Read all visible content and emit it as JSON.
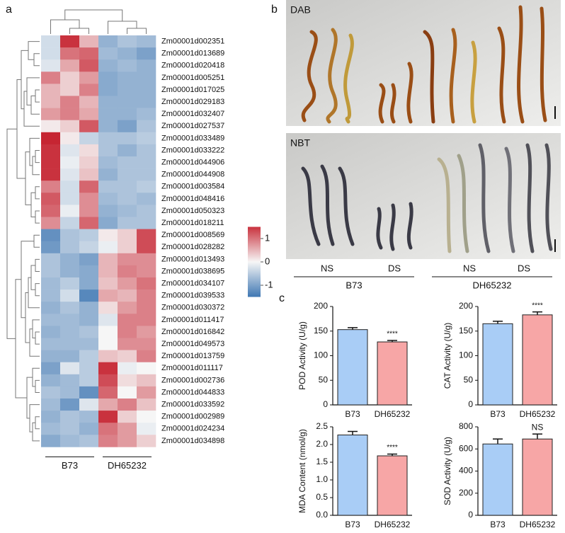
{
  "panel_labels": [
    "a",
    "b",
    "c"
  ],
  "photos": {
    "stains": [
      "DAB",
      "NBT"
    ],
    "treatments": [
      "NS",
      "DS",
      "NS",
      "DS"
    ],
    "genotypes": [
      "B73",
      "DH65232"
    ]
  },
  "chart_data": [
    {
      "type": "heatmap",
      "rows": [
        "Zm00001d002351",
        "Zm00001d013689",
        "Zm00001d020418",
        "Zm00001d005251",
        "Zm00001d017025",
        "Zm00001d029183",
        "Zm00001d032407",
        "Zm00001d027537",
        "Zm00001d033489",
        "Zm00001d033222",
        "Zm00001d044906",
        "Zm00001d044908",
        "Zm00001d003584",
        "Zm00001d048416",
        "Zm00001d050323",
        "Zm00001d018211",
        "Zm00001d008569",
        "Zm00001d028282",
        "Zm00001d013493",
        "Zm00001d038695",
        "Zm00001d034107",
        "Zm00001d039533",
        "Zm00001d030372",
        "Zm00001d011417",
        "Zm00001d016842",
        "Zm00001d049573",
        "Zm00001d013759",
        "Zm00001d011117",
        "Zm00001d002736",
        "Zm00001d044833",
        "Zm00001d033592",
        "Zm00001d002989",
        "Zm00001d024234",
        "Zm00001d034898"
      ],
      "column_groups": [
        "B73",
        "DH65232"
      ],
      "values": [
        [
          -0.3,
          1.5,
          0.5,
          -0.8,
          -0.6,
          -0.7
        ],
        [
          -0.3,
          1.0,
          1.1,
          -0.7,
          -0.8,
          -1.0
        ],
        [
          -0.2,
          0.6,
          1.2,
          -0.8,
          -0.7,
          -0.8
        ],
        [
          0.9,
          0.3,
          0.7,
          -0.9,
          -0.8,
          -0.8
        ],
        [
          0.5,
          0.3,
          0.9,
          -0.9,
          -0.8,
          -0.8
        ],
        [
          0.5,
          0.9,
          0.5,
          -0.8,
          -0.8,
          -0.8
        ],
        [
          0.7,
          0.9,
          0.6,
          -0.8,
          -0.8,
          -0.7
        ],
        [
          0.1,
          0.3,
          1.2,
          -0.8,
          -1.0,
          -0.6
        ],
        [
          1.6,
          0.1,
          -0.4,
          -0.6,
          -0.6,
          -0.5
        ],
        [
          1.5,
          -0.2,
          0.2,
          -0.6,
          -0.8,
          -0.6
        ],
        [
          1.5,
          -0.1,
          0.3,
          -0.7,
          -0.6,
          -0.6
        ],
        [
          1.5,
          -0.2,
          0.4,
          -0.8,
          -0.6,
          -0.6
        ],
        [
          0.9,
          -0.3,
          1.1,
          -0.6,
          -0.6,
          -0.5
        ],
        [
          1.2,
          -0.3,
          0.8,
          -0.7,
          -0.6,
          -0.7
        ],
        [
          1.1,
          -0.1,
          0.8,
          -0.8,
          -0.7,
          -0.6
        ],
        [
          0.8,
          -0.4,
          1.1,
          -0.9,
          -0.6,
          -0.6
        ],
        [
          -1.2,
          -0.6,
          -0.5,
          0.1,
          0.3,
          1.3
        ],
        [
          -1.1,
          -0.6,
          -0.4,
          -0.1,
          0.3,
          1.3
        ],
        [
          -0.6,
          -0.8,
          -1.0,
          0.5,
          0.8,
          0.8
        ],
        [
          -0.6,
          -0.8,
          -0.9,
          0.5,
          0.9,
          0.8
        ],
        [
          -0.7,
          -0.5,
          -0.9,
          0.4,
          0.7,
          1.0
        ],
        [
          -0.7,
          -0.3,
          -1.3,
          0.6,
          0.5,
          0.9
        ],
        [
          -0.8,
          -0.6,
          -0.8,
          0.2,
          0.7,
          0.9
        ],
        [
          -0.7,
          -0.7,
          -0.8,
          -0.2,
          0.9,
          0.9
        ],
        [
          -0.8,
          -0.7,
          -0.6,
          0.0,
          0.9,
          0.7
        ],
        [
          -0.7,
          -0.7,
          -0.7,
          0.0,
          0.8,
          0.8
        ],
        [
          -0.8,
          -0.8,
          -0.5,
          0.4,
          0.3,
          0.9
        ],
        [
          -1.0,
          -0.2,
          -0.5,
          1.5,
          -0.1,
          0.0
        ],
        [
          -0.8,
          -0.7,
          -0.5,
          1.3,
          0.2,
          0.4
        ],
        [
          -0.6,
          -0.7,
          -1.2,
          1.1,
          0.0,
          0.7
        ],
        [
          -0.7,
          -1.1,
          -0.2,
          0.6,
          0.9,
          0.4
        ],
        [
          -0.8,
          -0.6,
          -0.7,
          1.5,
          0.3,
          0.0
        ],
        [
          -0.7,
          -0.6,
          -0.8,
          1.0,
          0.7,
          -0.1
        ],
        [
          -0.9,
          -0.7,
          -0.6,
          0.9,
          0.7,
          0.3
        ]
      ],
      "zlim": [
        -1.5,
        1.5
      ],
      "colorbar_ticks": [
        1,
        0,
        -1
      ],
      "colors": [
        "#3f77b3",
        "#f6f6f6",
        "#c9323e"
      ]
    },
    {
      "type": "bar",
      "ylabel": "POD Activity (U/g)",
      "categories": [
        "B73",
        "DH65232"
      ],
      "values": [
        153,
        128
      ],
      "errors": [
        4,
        3
      ],
      "colors": [
        "#a9cdf6",
        "#f7a6a6"
      ],
      "annotation": "****",
      "ylim": [
        0,
        200
      ],
      "yticks": [
        0,
        50,
        100,
        150,
        200
      ]
    },
    {
      "type": "bar",
      "ylabel": "CAT Activity (U/g)",
      "categories": [
        "B73",
        "DH65232"
      ],
      "values": [
        165,
        183
      ],
      "errors": [
        5,
        6
      ],
      "colors": [
        "#a9cdf6",
        "#f7a6a6"
      ],
      "annotation": "****",
      "ylim": [
        0,
        200
      ],
      "yticks": [
        0,
        50,
        100,
        150,
        200
      ]
    },
    {
      "type": "bar",
      "ylabel": "MDA Content (nmol/g)",
      "categories": [
        "B73",
        "DH65232"
      ],
      "values": [
        2.27,
        1.68
      ],
      "errors": [
        0.1,
        0.05
      ],
      "colors": [
        "#a9cdf6",
        "#f7a6a6"
      ],
      "annotation": "****",
      "ylim": [
        0,
        2.5
      ],
      "yticks": [
        {
          "value": 0,
          "label": "0.0"
        },
        0.5,
        {
          "value": 1,
          "label": "1.0"
        },
        1.5,
        {
          "value": 2,
          "label": "2.0"
        },
        2.5
      ]
    },
    {
      "type": "bar",
      "ylabel": "SOD Activity (U/g)",
      "categories": [
        "B73",
        "DH65232"
      ],
      "values": [
        645,
        690
      ],
      "errors": [
        45,
        45
      ],
      "colors": [
        "#a9cdf6",
        "#f7a6a6"
      ],
      "annotation": "NS",
      "ylim": [
        0,
        800
      ],
      "yticks": [
        0,
        200,
        400,
        600,
        800
      ]
    }
  ]
}
